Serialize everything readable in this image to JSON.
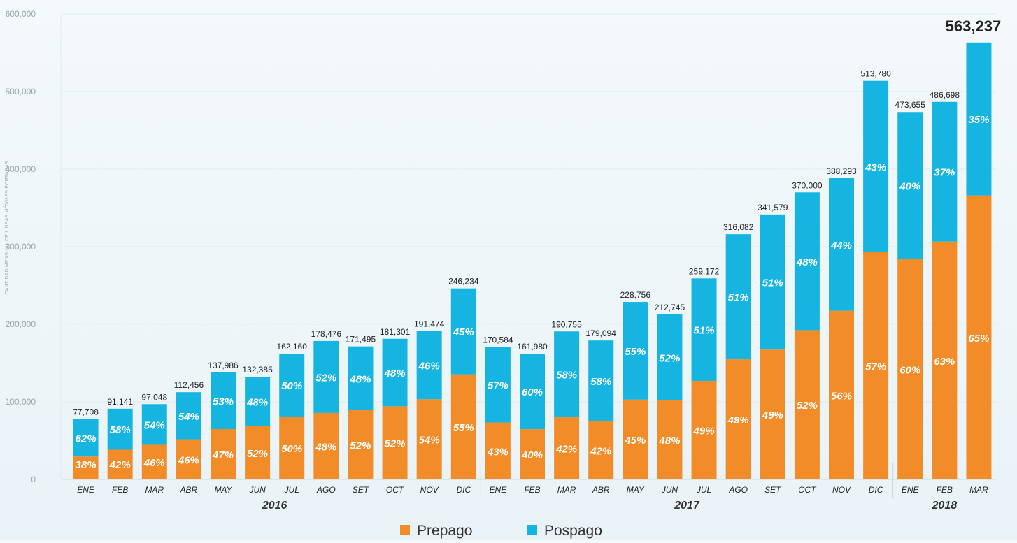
{
  "chart_data": {
    "type": "bar",
    "stacked": true,
    "ylabel": "CANTIDAD MENSUAL DE LÍNEAS MÓVILES PORTADAS",
    "ylim": [
      0,
      600000
    ],
    "yticks": [
      "0",
      "100,000",
      "200,000",
      "300,000",
      "400,000",
      "500,000",
      "600,000"
    ],
    "grid": true,
    "legend_position": "bottom-center",
    "categories": [
      "ENE",
      "FEB",
      "MAR",
      "ABR",
      "MAY",
      "JUN",
      "JUL",
      "AGO",
      "SET",
      "OCT",
      "NOV",
      "DIC",
      "ENE",
      "FEB",
      "MAR",
      "ABR",
      "MAY",
      "JUN",
      "JUL",
      "AGO",
      "SET",
      "OCT",
      "NOV",
      "DIC",
      "ENE",
      "FEB",
      "MAR"
    ],
    "years": [
      {
        "label": "2016",
        "start": 0,
        "end": 11
      },
      {
        "label": "2017",
        "start": 12,
        "end": 23
      },
      {
        "label": "2018",
        "start": 24,
        "end": 26
      }
    ],
    "totals": [
      77708,
      91141,
      97048,
      112456,
      137986,
      132385,
      162160,
      178476,
      171495,
      181301,
      191474,
      246234,
      170584,
      161980,
      190755,
      179094,
      228756,
      212745,
      259172,
      316082,
      341579,
      370000,
      388293,
      513780,
      473655,
      486698,
      563237
    ],
    "total_labels": [
      "77,708",
      "91,141",
      "97,048",
      "112,456",
      "137,986",
      "132,385",
      "162,160",
      "178,476",
      "171,495",
      "181,301",
      "191,474",
      "246,234",
      "170,584",
      "161,980",
      "190,755",
      "179,094",
      "228,756",
      "212,745",
      "259,172",
      "316,082",
      "341,579",
      "370,000",
      "388,293",
      "513,780",
      "473,655",
      "486,698",
      "563,237"
    ],
    "series": [
      {
        "name": "Prepago",
        "color": "#f28c28",
        "percent": [
          38,
          42,
          46,
          46,
          47,
          52,
          50,
          48,
          52,
          52,
          54,
          55,
          43,
          40,
          42,
          42,
          45,
          48,
          49,
          49,
          49,
          52,
          56,
          57,
          60,
          63,
          65
        ]
      },
      {
        "name": "Pospago",
        "color": "#16b4e0",
        "percent": [
          62,
          58,
          54,
          54,
          53,
          48,
          50,
          52,
          48,
          48,
          46,
          45,
          57,
          60,
          58,
          58,
          55,
          52,
          51,
          51,
          51,
          48,
          44,
          43,
          40,
          37,
          35
        ]
      }
    ],
    "pct_labels": {
      "Prepago": [
        "38%",
        "42%",
        "46%",
        "46%",
        "47%",
        "52%",
        "50%",
        "48%",
        "52%",
        "52%",
        "54%",
        "55%",
        "43%",
        "40%",
        "42%",
        "42%",
        "45%",
        "48%",
        "49%",
        "49%",
        "49%",
        "52%",
        "56%",
        "57%",
        "60%",
        "63%",
        "65%"
      ],
      "Pospago": [
        "62%",
        "58%",
        "54%",
        "54%",
        "53%",
        "48%",
        "50%",
        "52%",
        "48%",
        "48%",
        "46%",
        "45%",
        "57%",
        "60%",
        "58%",
        "58%",
        "55%",
        "52%",
        "51%",
        "51%",
        "51%",
        "48%",
        "44%",
        "43%",
        "40%",
        "37%",
        "35%"
      ]
    }
  }
}
